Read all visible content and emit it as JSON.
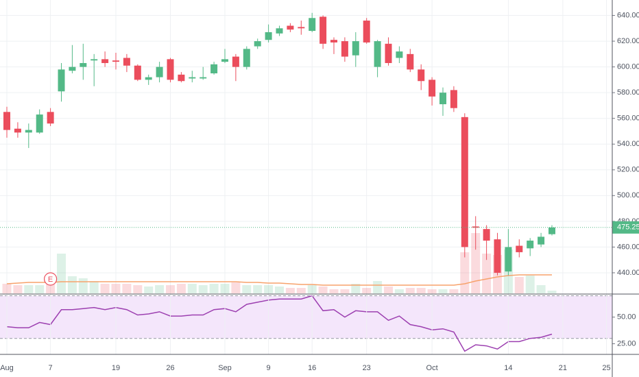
{
  "chart_data": [
    {
      "type": "candlestick",
      "categories": [
        "Aug",
        null,
        null,
        null,
        "7",
        null,
        null,
        null,
        null,
        null,
        "19",
        null,
        null,
        null,
        null,
        "26",
        null,
        null,
        null,
        null,
        "Sep",
        null,
        null,
        null,
        "9",
        null,
        null,
        null,
        "16",
        null,
        null,
        null,
        null,
        "23",
        null,
        null,
        null,
        null,
        null,
        "Oct",
        null,
        null,
        null,
        null,
        null,
        null,
        "14",
        null,
        null,
        null,
        null,
        "21",
        null,
        null,
        null,
        "25"
      ],
      "open": [
        565,
        552,
        549,
        549,
        565,
        581,
        597,
        600,
        605,
        606,
        605,
        607,
        601,
        590,
        592,
        606,
        594,
        591,
        591,
        595,
        604,
        608,
        600,
        616,
        621,
        626,
        632,
        631,
        628,
        639,
        621,
        620,
        609,
        636,
        600,
        618,
        607,
        610,
        598,
        590,
        571,
        582,
        561,
        476,
        474,
        466,
        441,
        461,
        459,
        462,
        470,
        null,
        null,
        null,
        null,
        null
      ],
      "high": [
        569,
        557,
        556,
        567,
        568,
        603,
        617,
        618,
        610,
        612,
        611,
        610,
        602,
        594,
        604,
        607,
        596,
        597,
        600,
        604,
        614,
        610,
        616,
        622,
        633,
        632,
        634,
        636,
        642,
        640,
        623,
        623,
        627,
        638,
        621,
        623,
        616,
        614,
        602,
        592,
        584,
        585,
        564,
        484,
        477,
        471,
        474,
        466,
        467,
        471,
        477,
        null,
        null,
        null,
        null,
        null
      ],
      "low": [
        545,
        545,
        537,
        548,
        554,
        573,
        595,
        590,
        585,
        600,
        598,
        596,
        589,
        586,
        588,
        588,
        588,
        588,
        590,
        594,
        603,
        589,
        598,
        614,
        619,
        624,
        627,
        625,
        627,
        614,
        610,
        604,
        600,
        618,
        592,
        601,
        603,
        596,
        582,
        570,
        562,
        565,
        452,
        458,
        450,
        438,
        438,
        452,
        453,
        460,
        469,
        null,
        null,
        null,
        null,
        null
      ],
      "close": [
        551,
        549,
        551,
        563,
        556,
        598,
        600,
        603,
        606,
        603,
        604,
        601,
        590,
        592,
        600,
        590,
        589,
        592,
        592,
        602,
        606,
        600,
        614,
        620,
        627,
        630,
        629,
        630,
        638,
        618,
        619,
        608,
        620,
        619,
        620,
        603,
        612,
        598,
        589,
        577,
        580,
        568,
        460,
        475,
        465,
        440,
        460,
        456,
        465,
        468,
        475.25,
        null,
        null,
        null,
        null,
        null
      ],
      "volume": [
        14,
        12,
        12,
        12,
        16,
        58,
        25,
        22,
        18,
        14,
        14,
        14,
        12,
        10,
        12,
        12,
        14,
        14,
        12,
        14,
        14,
        16,
        12,
        12,
        12,
        10,
        8,
        8,
        12,
        10,
        6,
        6,
        14,
        8,
        18,
        10,
        6,
        8,
        8,
        6,
        6,
        6,
        60,
        88,
        58,
        56,
        64,
        24,
        26,
        12,
        4,
        null,
        null,
        null,
        null,
        null
      ],
      "volume_ma": [
        14,
        15,
        16,
        16,
        16,
        17,
        17,
        17,
        17,
        17,
        17,
        17,
        17,
        17,
        17,
        17,
        17,
        17,
        17,
        17,
        17,
        17,
        16,
        16,
        15,
        15,
        14,
        13,
        13,
        12,
        12,
        12,
        12,
        12,
        12,
        12,
        12,
        12,
        12,
        12,
        12,
        12,
        14,
        18,
        21,
        24,
        26,
        27,
        27,
        27,
        27,
        null,
        null,
        null,
        null,
        null
      ],
      "annotations": [
        {
          "text": "E",
          "index": 4
        }
      ],
      "last_price": 475.25,
      "ylim": [
        424,
        652
      ],
      "yticks": [
        {
          "value": 440,
          "label": "440.00"
        },
        {
          "value": 460,
          "label": "460.00"
        },
        {
          "value": 480,
          "label": "480.00"
        },
        {
          "value": 500,
          "label": "500.00"
        },
        {
          "value": 520,
          "label": "520.00"
        },
        {
          "value": 540,
          "label": "540.00"
        },
        {
          "value": 560,
          "label": "560.00"
        },
        {
          "value": 580,
          "label": "580.00"
        },
        {
          "value": 600,
          "label": "600.00"
        },
        {
          "value": 620,
          "label": "620.00"
        },
        {
          "value": 640,
          "label": "640.00"
        }
      ],
      "up_color": "#53b987",
      "down_color": "#eb4d5c",
      "ma_color": "#f7a26b",
      "grid": true
    },
    {
      "type": "line",
      "values": [
        41,
        40,
        40,
        45,
        43,
        57,
        57,
        58,
        59,
        57,
        59,
        57,
        52,
        53,
        55,
        51,
        51,
        52,
        52,
        57,
        58,
        55,
        62,
        64,
        66,
        67,
        67,
        67,
        70,
        56,
        57,
        50,
        56,
        55,
        55,
        47,
        51,
        43,
        41,
        38,
        39,
        36,
        18,
        24,
        23,
        20,
        27,
        27,
        30,
        31,
        34,
        null,
        null,
        null,
        null,
        null
      ],
      "color": "#9c3fb0",
      "ylim": [
        15,
        71
      ],
      "yticks": [
        {
          "value": 25,
          "label": "25.00"
        },
        {
          "value": 50,
          "label": "50.00"
        }
      ],
      "bands": [
        30,
        70
      ],
      "band_color": "#f4e6fb"
    }
  ]
}
